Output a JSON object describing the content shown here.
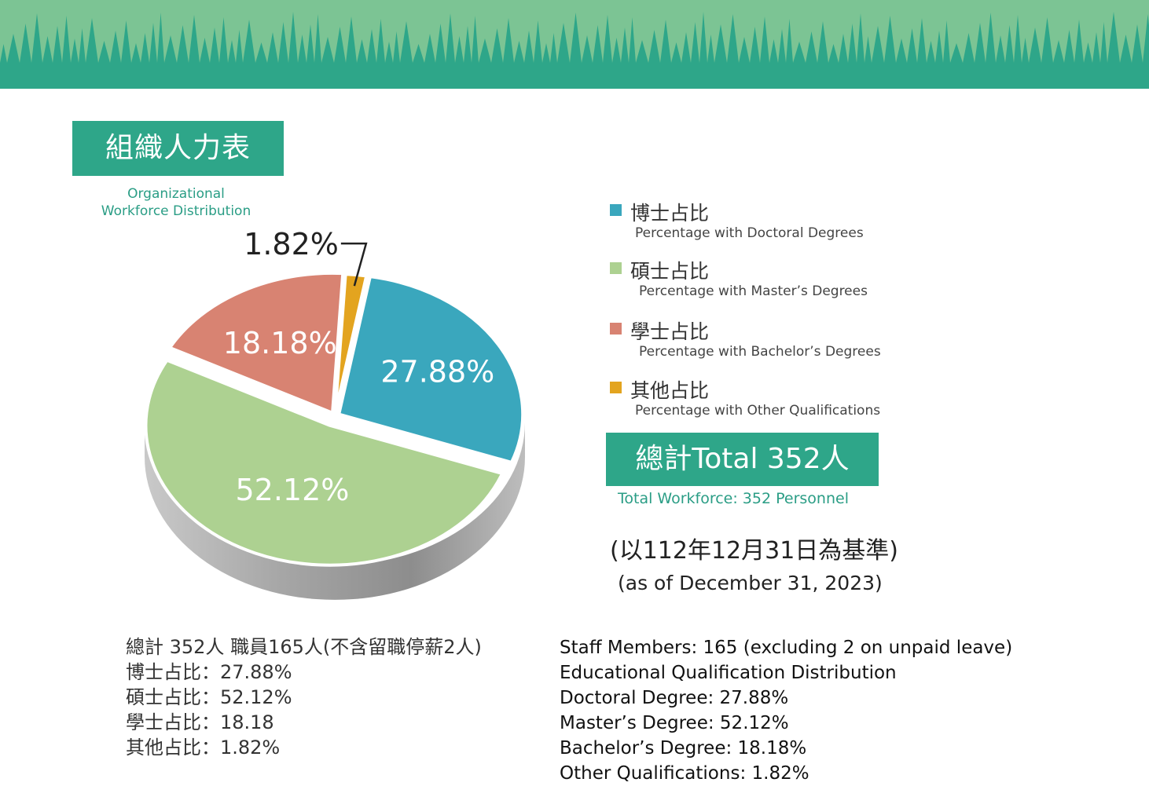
{
  "title_zh": "組織人力表",
  "title_en_line1": "Organizational",
  "title_en_line2": "Workforce Distribution",
  "colors": {
    "banner_bg": "#7cc494",
    "banner_grass": "#2ea689",
    "accent": "#2ea689",
    "doctoral": "#3aa7bd",
    "master": "#add191",
    "bachelor": "#d88372",
    "other": "#e3a41f"
  },
  "chart_data": {
    "type": "pie",
    "slices": [
      {
        "label_zh": "博士占比",
        "label_en": "Percentage with Doctoral Degrees",
        "value": 27.88,
        "display": "27.88%",
        "color": "#3aa7bd"
      },
      {
        "label_zh": "碩士占比",
        "label_en": "Percentage with Master’s Degrees",
        "value": 52.12,
        "display": "52.12%",
        "color": "#add191"
      },
      {
        "label_zh": "學士占比",
        "label_en": "Percentage with Bachelor’s Degrees",
        "value": 18.18,
        "display": "18.18%",
        "color": "#d88372"
      },
      {
        "label_zh": "其他占比",
        "label_en": "Percentage with Other Qualifications",
        "value": 1.82,
        "display": "1.82%",
        "color": "#e3a41f"
      }
    ],
    "legend_position": "right"
  },
  "total": {
    "label": "總計Total 352人",
    "en": "Total Workforce: 352 Personnel"
  },
  "as_of": {
    "zh": "(以112年12月31日為基準)",
    "en": "(as of December 31, 2023)"
  },
  "notes_zh": [
    "總計 352人 職員165人(不含留職停薪2人)",
    "博士占比：27.88%",
    "碩士占比：52.12%",
    "學士占比：18.18",
    "其他占比：1.82%"
  ],
  "notes_en": [
    "Staff Members: 165 (excluding 2 on unpaid leave)",
    "Educational Qualification Distribution",
    "Doctoral Degree: 27.88%",
    "Master’s Degree: 52.12%",
    "Bachelor’s Degree: 18.18%",
    "Other Qualifications: 1.82%"
  ]
}
